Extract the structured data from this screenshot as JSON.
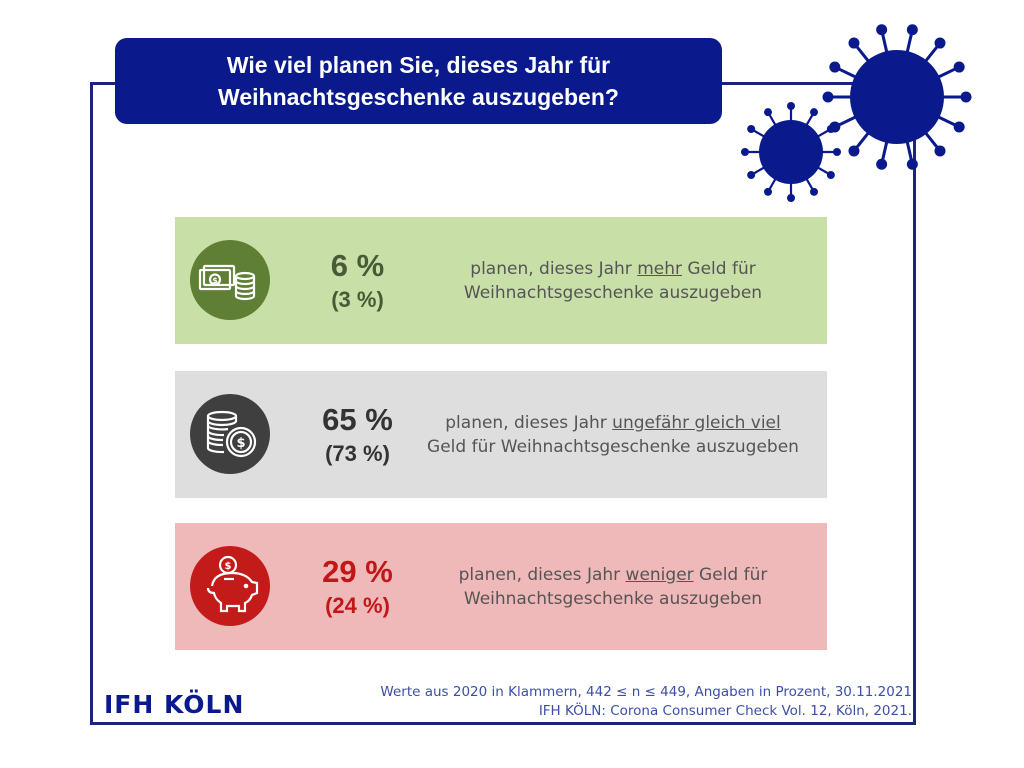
{
  "title": {
    "line1": "Wie viel planen Sie, dieses Jahr für",
    "line2": "Weihnachtsgeschenke auszugeben?"
  },
  "colors": {
    "brand": "#0a1a8c",
    "green_bg": "#c8dfa8",
    "green_icon": "#5f7f34",
    "green_text": "#4a5a35",
    "gray_bg": "#dedede",
    "gray_icon": "#3f3f3f",
    "gray_text": "#333333",
    "red_bg": "#f0b9b9",
    "red_icon": "#c31a1a",
    "red_text": "#c01818"
  },
  "chart_data": {
    "type": "table",
    "title": "Wie viel planen Sie, dieses Jahr für Weihnachtsgeschenke auszugeben?",
    "unit": "%",
    "series": [
      {
        "values": [
          6,
          65,
          29
        ]
      },
      {
        "values": [
          3,
          73,
          24
        ]
      }
    ],
    "categories": [
      "planen, dieses Jahr mehr Geld für Weihnachtsgeschenke auszugeben",
      "planen, dieses Jahr ungefähr gleich viel Geld für Weihnachtsgeschenke auszugeben",
      "planen, dieses Jahr weniger Geld für Weihnachtsgeschenke auszugeben"
    ]
  },
  "rows": [
    {
      "icon": "cash-coins-icon",
      "value": "6 %",
      "prev": "(3 %)",
      "pre": "planen, dieses Jahr ",
      "key": "mehr",
      "post": " Geld für Weihnachtsgeschenke auszugeben"
    },
    {
      "icon": "coin-stack-dollar-icon",
      "value": "65 %",
      "prev": "(73 %)",
      "pre": "planen, dieses Jahr ",
      "key": "ungefähr gleich viel",
      "post": " Geld für Weihnachtsgeschenke auszugeben"
    },
    {
      "icon": "piggy-bank-icon",
      "value": "29 %",
      "prev": "(24 %)",
      "pre": "planen, dieses Jahr ",
      "key": "weniger",
      "post": " Geld für Weihnachtsgeschenke auszugeben"
    }
  ],
  "logo": "IFH KÖLN",
  "source": {
    "line1": "Werte aus 2020 in Klammern, 442 ≤ n ≤ 449, Angaben in Prozent, 30.11.2021",
    "line2": "IFH KÖLN: Corona Consumer Check Vol. 12, Köln, 2021."
  }
}
